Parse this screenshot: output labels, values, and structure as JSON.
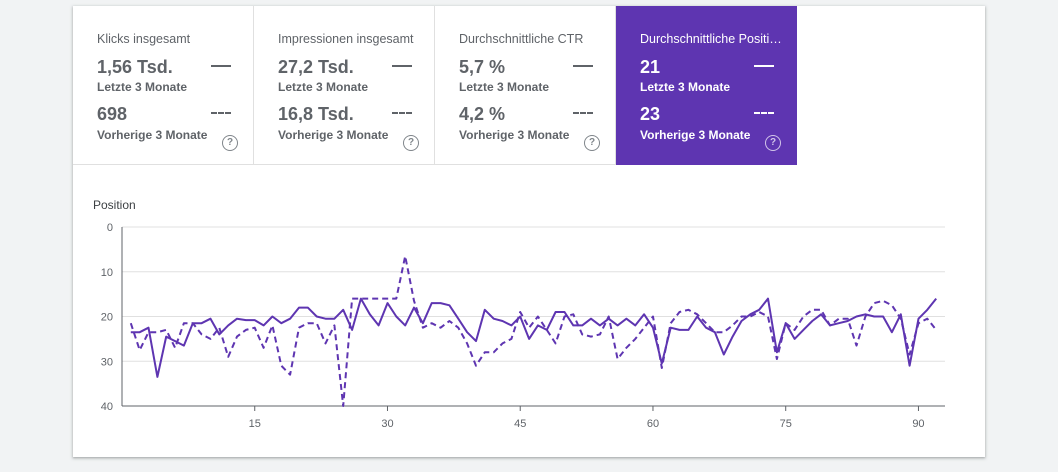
{
  "tiles": [
    {
      "title": "Klicks insgesamt",
      "current_value": "1,56 Tsd.",
      "current_label": "Letzte 3 Monate",
      "previous_value": "698",
      "previous_label": "Vorherige 3 Monate",
      "active": false
    },
    {
      "title": "Impressionen insgesamt",
      "current_value": "27,2 Tsd.",
      "current_label": "Letzte 3 Monate",
      "previous_value": "16,8 Tsd.",
      "previous_label": "Vorherige 3 Monate",
      "active": false
    },
    {
      "title": "Durchschnittliche CTR",
      "current_value": "5,7 %",
      "current_label": "Letzte 3 Monate",
      "previous_value": "4,2 %",
      "previous_label": "Vorherige 3 Monate",
      "active": false
    },
    {
      "title": "Durchschnittliche Positi…",
      "current_value": "21",
      "current_label": "Letzte 3 Monate",
      "previous_value": "23",
      "previous_label": "Vorherige 3 Monate",
      "active": true
    }
  ],
  "help_icon": {
    "name": "help-circle-icon",
    "glyph": "?"
  },
  "colors": {
    "accent": "#5e35b1",
    "line_current": "#5e35b1",
    "line_previous": "#5e35b1",
    "grid": "#e0e0e0",
    "axis": "#5f6368",
    "muted_text": "#5f6368"
  },
  "chart_data": {
    "type": "line",
    "title": "",
    "ylabel": "Position",
    "xlabel": "",
    "y_reversed": true,
    "ylim": [
      0,
      40
    ],
    "yticks": [
      0,
      10,
      20,
      30,
      40
    ],
    "xlim": [
      0,
      93
    ],
    "xticks": [
      15,
      30,
      45,
      60,
      75,
      90
    ],
    "grid": true,
    "series": [
      {
        "name": "Letzte 3 Monate",
        "style": "solid",
        "x": [
          1,
          2,
          3,
          4,
          5,
          6,
          7,
          8,
          9,
          10,
          11,
          12,
          13,
          14,
          15,
          16,
          17,
          18,
          19,
          20,
          21,
          22,
          23,
          24,
          25,
          26,
          27,
          28,
          29,
          30,
          31,
          32,
          33,
          34,
          35,
          36,
          37,
          38,
          39,
          40,
          41,
          42,
          43,
          44,
          45,
          46,
          47,
          48,
          49,
          50,
          51,
          52,
          53,
          54,
          55,
          56,
          57,
          58,
          59,
          60,
          61,
          62,
          63,
          64,
          65,
          66,
          67,
          68,
          69,
          70,
          71,
          72,
          73,
          74,
          75,
          76,
          77,
          78,
          79,
          80,
          81,
          82,
          83,
          84,
          85,
          86,
          87,
          88,
          89,
          90,
          91,
          92
        ],
        "y": [
          23.5,
          23.5,
          22.5,
          33.5,
          24.5,
          25.5,
          26.5,
          21.5,
          21.5,
          20.5,
          24.0,
          22.0,
          20.5,
          20.8,
          20.8,
          22.0,
          20.0,
          21.5,
          20.5,
          18.0,
          18.0,
          20.0,
          20.5,
          20.5,
          18.5,
          23.0,
          16.0,
          19.5,
          22.0,
          17.0,
          20.0,
          22.0,
          18.0,
          21.5,
          17.0,
          17.0,
          17.5,
          20.5,
          23.5,
          25.5,
          18.5,
          20.5,
          21.0,
          22.0,
          20.0,
          25.0,
          22.0,
          23.0,
          19.0,
          19.0,
          22.0,
          22.0,
          20.5,
          22.0,
          20.5,
          22.0,
          20.5,
          22.0,
          19.5,
          22.5,
          30.5,
          22.5,
          23.0,
          23.0,
          20.0,
          22.5,
          23.5,
          28.5,
          24.5,
          21.0,
          19.5,
          18.5,
          16.0,
          28.0,
          21.5,
          25.0,
          23.0,
          21.0,
          19.5,
          22.0,
          21.5,
          21.0,
          20.0,
          19.5,
          20.0,
          20.0,
          23.5,
          19.5,
          31.0,
          20.5,
          18.5,
          16.0
        ]
      },
      {
        "name": "Vorherige 3 Monate",
        "style": "dashed",
        "x": [
          1,
          2,
          3,
          4,
          5,
          6,
          7,
          8,
          9,
          10,
          11,
          12,
          13,
          14,
          15,
          16,
          17,
          18,
          19,
          20,
          21,
          22,
          23,
          24,
          25,
          26,
          27,
          28,
          29,
          30,
          31,
          32,
          33,
          34,
          35,
          36,
          37,
          38,
          39,
          40,
          41,
          42,
          43,
          44,
          45,
          46,
          47,
          48,
          49,
          50,
          51,
          52,
          53,
          54,
          55,
          56,
          57,
          58,
          59,
          60,
          61,
          62,
          63,
          64,
          65,
          66,
          67,
          68,
          69,
          70,
          71,
          72,
          73,
          74,
          75,
          76,
          77,
          78,
          79,
          80,
          81,
          82,
          83,
          84,
          85,
          86,
          87,
          88,
          89,
          90,
          91,
          92
        ],
        "y": [
          21.5,
          27.5,
          23.5,
          23.5,
          23.0,
          27.0,
          21.5,
          21.5,
          24.0,
          25.0,
          22.5,
          29.0,
          24.5,
          23.0,
          22.5,
          27.0,
          22.0,
          31.0,
          33.0,
          22.5,
          21.5,
          21.5,
          26.0,
          22.0,
          40.0,
          16.0,
          16.0,
          16.0,
          16.0,
          16.0,
          16.0,
          6.5,
          16.5,
          22.5,
          21.5,
          22.5,
          21.0,
          22.5,
          26.0,
          31.0,
          28.0,
          28.0,
          26.0,
          25.0,
          19.0,
          22.5,
          20.0,
          23.0,
          26.0,
          20.0,
          19.5,
          24.0,
          24.5,
          24.0,
          20.0,
          29.5,
          27.0,
          25.0,
          22.5,
          20.0,
          31.5,
          21.5,
          19.0,
          18.5,
          19.5,
          21.5,
          23.5,
          23.5,
          22.0,
          20.0,
          20.0,
          19.0,
          20.0,
          29.5,
          21.5,
          23.0,
          20.0,
          18.5,
          18.5,
          22.0,
          20.5,
          20.5,
          26.5,
          20.0,
          17.0,
          16.5,
          17.5,
          20.5,
          28.5,
          21.5,
          20.5,
          23.0
        ]
      }
    ]
  }
}
